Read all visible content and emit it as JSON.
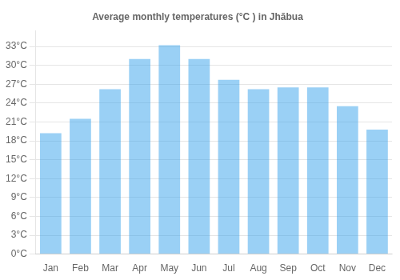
{
  "chart_data": {
    "type": "bar",
    "title": "Average monthly temperatures (°C ) in Jhābua",
    "categories": [
      "Jan",
      "Feb",
      "Mar",
      "Apr",
      "May",
      "Jun",
      "Jul",
      "Aug",
      "Sep",
      "Oct",
      "Nov",
      "Dec"
    ],
    "values": [
      19.2,
      21.5,
      26.2,
      31.0,
      33.2,
      31.0,
      27.7,
      26.2,
      26.5,
      26.5,
      23.5,
      19.8
    ],
    "ylim": [
      0,
      35.5
    ],
    "yticks": [
      {
        "value": 0,
        "label": "0°C"
      },
      {
        "value": 3,
        "label": "3°C"
      },
      {
        "value": 6,
        "label": "6°C"
      },
      {
        "value": 9,
        "label": "9°C"
      },
      {
        "value": 12,
        "label": "12°C"
      },
      {
        "value": 15,
        "label": "15°C"
      },
      {
        "value": 18,
        "label": "18°C"
      },
      {
        "value": 21,
        "label": "21°C"
      },
      {
        "value": 24,
        "label": "24°C"
      },
      {
        "value": 27,
        "label": "27°C"
      },
      {
        "value": 30,
        "label": "30°C"
      },
      {
        "value": 33,
        "label": "33°C"
      }
    ],
    "grid": true
  }
}
